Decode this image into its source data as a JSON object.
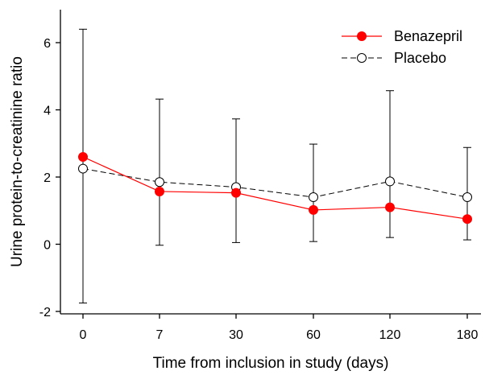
{
  "chart_data": {
    "type": "line",
    "title": "",
    "xlabel": "Time from inclusion in study (days)",
    "ylabel": "Urine protein-to-creatinine ratio",
    "categories": [
      "0",
      "7",
      "30",
      "60",
      "120",
      "180"
    ],
    "ylim": [
      -2,
      7
    ],
    "yticks": [
      -2,
      0,
      2,
      4,
      6
    ],
    "ytick_labels": [
      "-2",
      "0",
      "2",
      "4",
      "6"
    ],
    "grid": false,
    "legend_position": "top-right",
    "series": [
      {
        "name": "Benazepril",
        "values": [
          2.6,
          1.57,
          1.53,
          1.02,
          1.1,
          0.75
        ],
        "color": "#ff0000",
        "marker": "filled-circle",
        "line_style": "solid"
      },
      {
        "name": "Placebo",
        "values": [
          2.25,
          1.85,
          1.7,
          1.4,
          1.87,
          1.4
        ],
        "color": "#000000",
        "marker": "open-circle",
        "line_style": "dashed",
        "error_upper": [
          6.4,
          4.32,
          3.73,
          2.98,
          4.57,
          2.88
        ],
        "error_lower": [
          -1.75,
          -0.03,
          0.05,
          0.08,
          0.2,
          0.13
        ]
      }
    ]
  }
}
